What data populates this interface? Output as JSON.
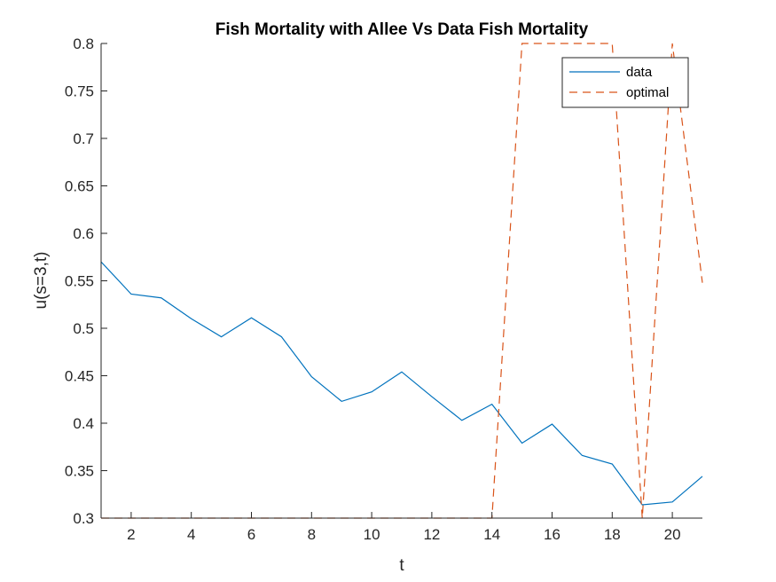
{
  "chart_data": {
    "type": "line",
    "title": "Fish Mortality with Allee Vs Data Fish Mortality",
    "xlabel": "t",
    "ylabel": "u(s=3,t)",
    "xlim": [
      1,
      21
    ],
    "ylim": [
      0.3,
      0.8
    ],
    "xticks": [
      2,
      4,
      6,
      8,
      10,
      12,
      14,
      16,
      18,
      20
    ],
    "xtick_labels": [
      "2",
      "4",
      "6",
      "8",
      "10",
      "12",
      "14",
      "16",
      "18",
      "20"
    ],
    "yticks": [
      0.3,
      0.35,
      0.4,
      0.45,
      0.5,
      0.55,
      0.6,
      0.65,
      0.7,
      0.75,
      0.8
    ],
    "ytick_labels": [
      "0.3",
      "0.35",
      "0.4",
      "0.45",
      "0.5",
      "0.55",
      "0.6",
      "0.65",
      "0.7",
      "0.75",
      "0.8"
    ],
    "grid": false,
    "legend_position": "top-right",
    "x": [
      1,
      2,
      3,
      4,
      5,
      6,
      7,
      8,
      9,
      10,
      11,
      12,
      13,
      14,
      15,
      16,
      17,
      18,
      19,
      20,
      21
    ],
    "series": [
      {
        "name": "data",
        "color": "#0072BD",
        "style": "solid",
        "values": [
          0.57,
          0.536,
          0.532,
          0.51,
          0.491,
          0.511,
          0.491,
          0.449,
          0.423,
          0.433,
          0.454,
          0.428,
          0.403,
          0.42,
          0.379,
          0.399,
          0.366,
          0.357,
          0.314,
          0.317,
          0.344
        ]
      },
      {
        "name": "optimal",
        "color": "#D95319",
        "style": "dashed",
        "values": [
          0.3,
          0.3,
          0.3,
          0.3,
          0.3,
          0.3,
          0.3,
          0.3,
          0.3,
          0.3,
          0.3,
          0.3,
          0.3,
          0.3,
          0.8,
          0.8,
          0.8,
          0.8,
          0.3,
          0.8,
          0.548
        ]
      }
    ]
  }
}
